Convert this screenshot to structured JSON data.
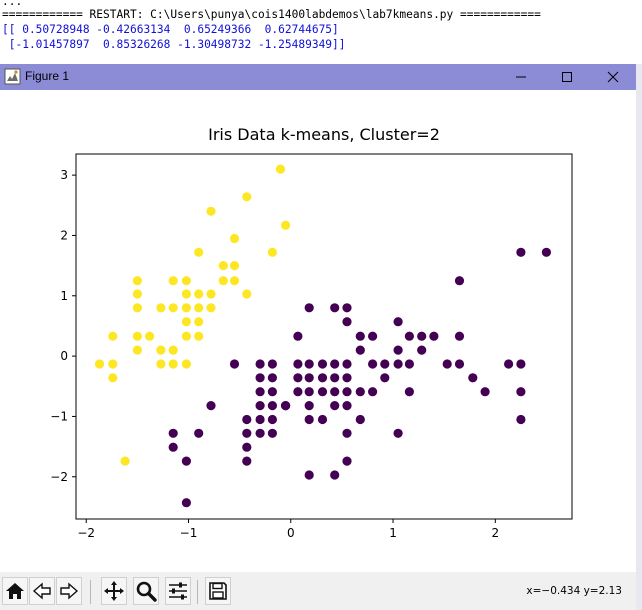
{
  "shell": {
    "line0": "...",
    "line1": "============ RESTART: C:\\Users\\punya\\cois1400labdemos\\lab7kmeans.py ============",
    "line2": "[[ 0.50728948 -0.42663134  0.65249366  0.62744675]",
    "line3": " [-1.01457897  0.85326268 -1.30498732 -1.25489349]]"
  },
  "window": {
    "title": "Figure 1",
    "icons": [
      "figure-icon",
      "minimize-icon",
      "maximize-icon",
      "close-icon"
    ]
  },
  "toolbar": {
    "buttons": [
      "home-icon",
      "back-icon",
      "forward-icon",
      "pan-icon",
      "zoom-icon",
      "configure-subplots-icon",
      "save-icon"
    ],
    "coords": "x=−0.434   y=2.13"
  },
  "chart_data": {
    "type": "scatter",
    "title": "Iris Data k-means, Cluster=2",
    "xlabel": "",
    "ylabel": "",
    "xlim": [
      -2.1,
      2.75
    ],
    "ylim": [
      -2.7,
      3.35
    ],
    "xticks": [
      -2,
      -1,
      0,
      1,
      2
    ],
    "yticks": [
      -2,
      -1,
      0,
      1,
      2,
      3
    ],
    "grid": false,
    "legend": "none",
    "series": [
      {
        "color": "#fde725",
        "points": [
          [
            -0.1,
            3.1
          ],
          [
            -0.43,
            2.64
          ],
          [
            -0.78,
            2.4
          ],
          [
            -0.05,
            2.17
          ],
          [
            -0.55,
            1.95
          ],
          [
            -0.9,
            1.72
          ],
          [
            -0.18,
            1.72
          ],
          [
            -1.5,
            1.25
          ],
          [
            -1.15,
            1.25
          ],
          [
            -1.02,
            1.25
          ],
          [
            -0.55,
            1.5
          ],
          [
            -0.66,
            1.5
          ],
          [
            -1.02,
            1.03
          ],
          [
            -0.9,
            1.03
          ],
          [
            -0.78,
            1.03
          ],
          [
            -1.15,
            0.8
          ],
          [
            -1.02,
            0.8
          ],
          [
            -0.9,
            0.8
          ],
          [
            -0.78,
            0.8
          ],
          [
            -1.27,
            0.8
          ],
          [
            -1.5,
            0.8
          ],
          [
            -1.02,
            0.57
          ],
          [
            -0.9,
            0.57
          ],
          [
            -1.02,
            0.33
          ],
          [
            -0.9,
            0.33
          ],
          [
            -1.38,
            0.33
          ],
          [
            -1.5,
            0.33
          ],
          [
            -1.74,
            0.33
          ],
          [
            -0.55,
            1.25
          ],
          [
            -0.43,
            1.03
          ],
          [
            -1.27,
            0.1
          ],
          [
            -1.15,
            0.1
          ],
          [
            -1.5,
            0.1
          ],
          [
            -1.27,
            -0.13
          ],
          [
            -1.15,
            -0.13
          ],
          [
            -1.02,
            -0.13
          ],
          [
            -1.87,
            -0.13
          ],
          [
            -1.74,
            -0.13
          ],
          [
            -1.74,
            -0.36
          ],
          [
            -1.62,
            -1.74
          ],
          [
            -1.5,
            1.03
          ],
          [
            -0.66,
            1.25
          ]
        ]
      },
      {
        "color": "#440154",
        "points": [
          [
            2.25,
            1.72
          ],
          [
            2.5,
            1.72
          ],
          [
            1.65,
            1.25
          ],
          [
            0.18,
            0.8
          ],
          [
            0.43,
            0.8
          ],
          [
            0.55,
            0.8
          ],
          [
            0.55,
            0.57
          ],
          [
            1.05,
            0.57
          ],
          [
            0.07,
            0.33
          ],
          [
            0.68,
            0.33
          ],
          [
            0.8,
            0.33
          ],
          [
            1.16,
            0.33
          ],
          [
            1.28,
            0.33
          ],
          [
            1.4,
            0.33
          ],
          [
            1.65,
            0.33
          ],
          [
            0.68,
            0.1
          ],
          [
            1.05,
            0.1
          ],
          [
            1.28,
            0.1
          ],
          [
            -0.55,
            -0.13
          ],
          [
            -0.3,
            -0.13
          ],
          [
            -0.18,
            -0.13
          ],
          [
            0.07,
            -0.13
          ],
          [
            0.18,
            -0.13
          ],
          [
            0.31,
            -0.13
          ],
          [
            0.43,
            -0.13
          ],
          [
            0.55,
            -0.13
          ],
          [
            0.8,
            -0.13
          ],
          [
            0.92,
            -0.13
          ],
          [
            1.05,
            -0.13
          ],
          [
            1.16,
            -0.13
          ],
          [
            1.53,
            -0.13
          ],
          [
            1.65,
            -0.13
          ],
          [
            2.13,
            -0.13
          ],
          [
            2.25,
            -0.13
          ],
          [
            -0.3,
            -0.36
          ],
          [
            -0.18,
            -0.36
          ],
          [
            0.07,
            -0.36
          ],
          [
            0.18,
            -0.36
          ],
          [
            0.31,
            -0.36
          ],
          [
            0.43,
            -0.36
          ],
          [
            0.55,
            -0.36
          ],
          [
            0.92,
            -0.36
          ],
          [
            1.78,
            -0.36
          ],
          [
            -0.3,
            -0.59
          ],
          [
            -0.18,
            -0.59
          ],
          [
            0.07,
            -0.59
          ],
          [
            0.18,
            -0.59
          ],
          [
            0.31,
            -0.59
          ],
          [
            0.43,
            -0.59
          ],
          [
            0.55,
            -0.59
          ],
          [
            0.68,
            -0.59
          ],
          [
            0.8,
            -0.59
          ],
          [
            1.16,
            -0.59
          ],
          [
            1.9,
            -0.59
          ],
          [
            2.25,
            -0.59
          ],
          [
            -0.3,
            -0.82
          ],
          [
            -0.18,
            -0.82
          ],
          [
            -0.05,
            -0.82
          ],
          [
            0.18,
            -0.82
          ],
          [
            0.43,
            -0.82
          ],
          [
            0.55,
            -0.82
          ],
          [
            -0.78,
            -0.82
          ],
          [
            -0.43,
            -1.05
          ],
          [
            -0.3,
            -1.05
          ],
          [
            -0.18,
            -1.05
          ],
          [
            0.31,
            -1.05
          ],
          [
            0.68,
            -1.05
          ],
          [
            2.25,
            -1.05
          ],
          [
            -1.15,
            -1.28
          ],
          [
            -0.9,
            -1.28
          ],
          [
            -0.43,
            -1.28
          ],
          [
            -0.3,
            -1.28
          ],
          [
            -0.18,
            -1.28
          ],
          [
            0.55,
            -1.28
          ],
          [
            1.05,
            -1.28
          ],
          [
            -1.15,
            -1.51
          ],
          [
            -0.43,
            -1.51
          ],
          [
            -1.02,
            -1.74
          ],
          [
            -0.43,
            -1.74
          ],
          [
            0.55,
            -1.74
          ],
          [
            0.18,
            -1.97
          ],
          [
            0.43,
            -1.97
          ],
          [
            -1.02,
            -2.43
          ],
          [
            -0.05,
            -0.82
          ],
          [
            0.18,
            -1.05
          ]
        ]
      }
    ]
  }
}
